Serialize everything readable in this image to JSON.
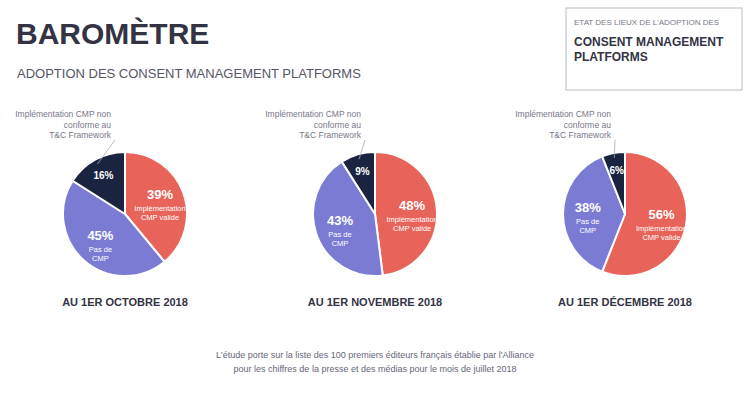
{
  "title": "BAROMÈTRE",
  "subtitle": "ADOPTION DES CONSENT MANAGEMENT PLATFORMS",
  "annotations": [
    "ETAT DES LIEUX DE L'ADOPTION DES",
    "CONSENT MANAGEMENT\nPLATFORMS",
    "L'étude porte sur la liste des 100 premiers éditeurs français établie par l'Alliance",
    "pour les chiffres de la presse et des médias pour le mois de juillet 2018"
  ],
  "chart_data": [
    {
      "type": "pie",
      "title": "AU 1ER OCTOBRE 2018",
      "categories": [
        "Implémentation\nCMP valide",
        "Pas de\nCMP",
        "Implémentation CMP non\nconforme au\nT&C Framework"
      ],
      "values": [
        39,
        45,
        16
      ],
      "value_labels": [
        "39%",
        "45%",
        "16%"
      ],
      "colors": [
        "#e8635a",
        "#7b7bd4",
        "#1a2440"
      ],
      "data_labels": true
    },
    {
      "type": "pie",
      "title": "AU 1ER NOVEMBRE 2018",
      "categories": [
        "Implémentation\nCMP valide",
        "Pas de\nCMP",
        "Implémentation CMP non\nconforme au\nT&C Framework"
      ],
      "values": [
        48,
        43,
        9
      ],
      "value_labels": [
        "48%",
        "43%",
        "9%"
      ],
      "colors": [
        "#e8635a",
        "#7b7bd4",
        "#1a2440"
      ],
      "data_labels": true
    },
    {
      "type": "pie",
      "title": "AU 1ER DÉCEMBRE 2018",
      "categories": [
        "Implémentation\nCMP valide",
        "Pas de\nCMP",
        "Implémentation CMP non\nconforme au\nT&C Framework"
      ],
      "values": [
        56,
        38,
        6
      ],
      "value_labels": [
        "56%",
        "38%",
        "6%"
      ],
      "colors": [
        "#e8635a",
        "#7b7bd4",
        "#1a2440"
      ],
      "data_labels": true
    }
  ]
}
